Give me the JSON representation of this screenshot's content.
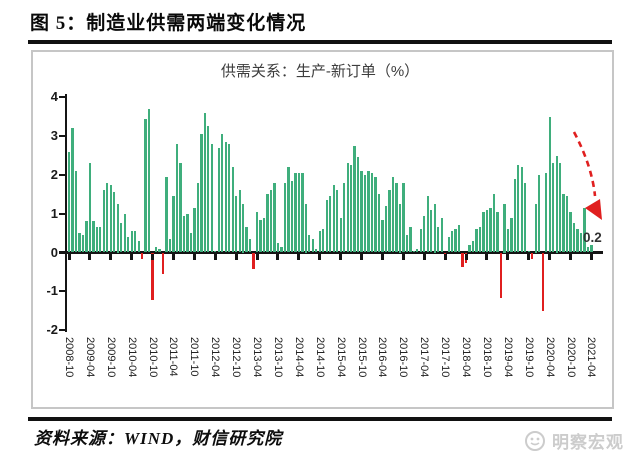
{
  "page": {
    "figure_title": "图 5：制造业供需两端变化情况",
    "source_note": "资料来源：WIND，财信研究院",
    "watermark": "明察宏观"
  },
  "chart_data": {
    "type": "bar",
    "title": "供需关系：生产-新订单（%）",
    "xlabel": "",
    "ylabel": "",
    "ylim": [
      -2,
      4
    ],
    "y_ticks": [
      4,
      3,
      2,
      1,
      0,
      -1,
      -2
    ],
    "grid": false,
    "legend": "none",
    "x_start": "2008-10",
    "x_end": "2021-04",
    "frequency": "monthly",
    "x_tick_labels": [
      "2008-10",
      "2009-04",
      "2009-10",
      "2010-04",
      "2010-10",
      "2011-04",
      "2011-10",
      "2012-04",
      "2012-10",
      "2013-04",
      "2013-10",
      "2014-04",
      "2014-10",
      "2015-04",
      "2015-10",
      "2016-04",
      "2016-10",
      "2017-04",
      "2017-10",
      "2018-04",
      "2018-10",
      "2019-04",
      "2019-10",
      "2020-04",
      "2020-10",
      "2021-04"
    ],
    "values": [
      2.6,
      3.2,
      2.1,
      0.5,
      0.45,
      0.8,
      2.3,
      0.8,
      0.65,
      0.65,
      1.6,
      1.8,
      1.75,
      1.55,
      1.25,
      0.75,
      1.0,
      0.4,
      0.55,
      0.55,
      0.3,
      -0.15,
      3.45,
      3.7,
      -1.2,
      0.15,
      0.1,
      -0.55,
      1.95,
      0.35,
      1.45,
      2.8,
      2.3,
      0.95,
      1.0,
      0.5,
      1.15,
      1.8,
      3.05,
      3.6,
      3.25,
      2.8,
      0.05,
      2.7,
      3.05,
      2.85,
      2.8,
      2.2,
      1.45,
      1.6,
      1.25,
      0.65,
      0.35,
      -0.4,
      1.05,
      0.85,
      0.9,
      1.5,
      1.6,
      1.8,
      0.25,
      0.15,
      1.8,
      2.2,
      1.85,
      2.05,
      2.05,
      2.05,
      1.25,
      0.45,
      0.35,
      0.1,
      0.55,
      0.6,
      1.35,
      1.45,
      1.75,
      1.6,
      0.9,
      1.8,
      2.3,
      2.25,
      2.75,
      2.45,
      2.1,
      2.0,
      2.1,
      2.05,
      1.95,
      1.5,
      0.85,
      1.2,
      1.6,
      1.95,
      1.8,
      1.25,
      1.8,
      0.45,
      0.65,
      0.05,
      0.1,
      0.6,
      0.95,
      1.45,
      1.1,
      1.25,
      0.65,
      0.9,
      -0.1,
      0.4,
      0.55,
      0.6,
      0.7,
      -0.35,
      -0.25,
      0.2,
      0.3,
      0.6,
      0.65,
      1.05,
      1.1,
      1.15,
      1.5,
      1.05,
      -1.15,
      1.25,
      0.6,
      0.9,
      1.9,
      2.25,
      2.2,
      1.8,
      0.05,
      -0.15,
      1.25,
      2.0,
      -1.5,
      2.05,
      3.5,
      2.3,
      2.5,
      2.3,
      1.5,
      1.45,
      1.05,
      0.75,
      0.6,
      0.5,
      1.15,
      0.15,
      0.2
    ],
    "bar_color_positive": "#3fae7c",
    "bar_color_negative": "#e01f1f",
    "annotation": {
      "text": "0.2",
      "target": "2021-04"
    },
    "trend_arrow": {
      "style": "dashed",
      "color": "#e01f1f",
      "direction": "down-right"
    }
  }
}
